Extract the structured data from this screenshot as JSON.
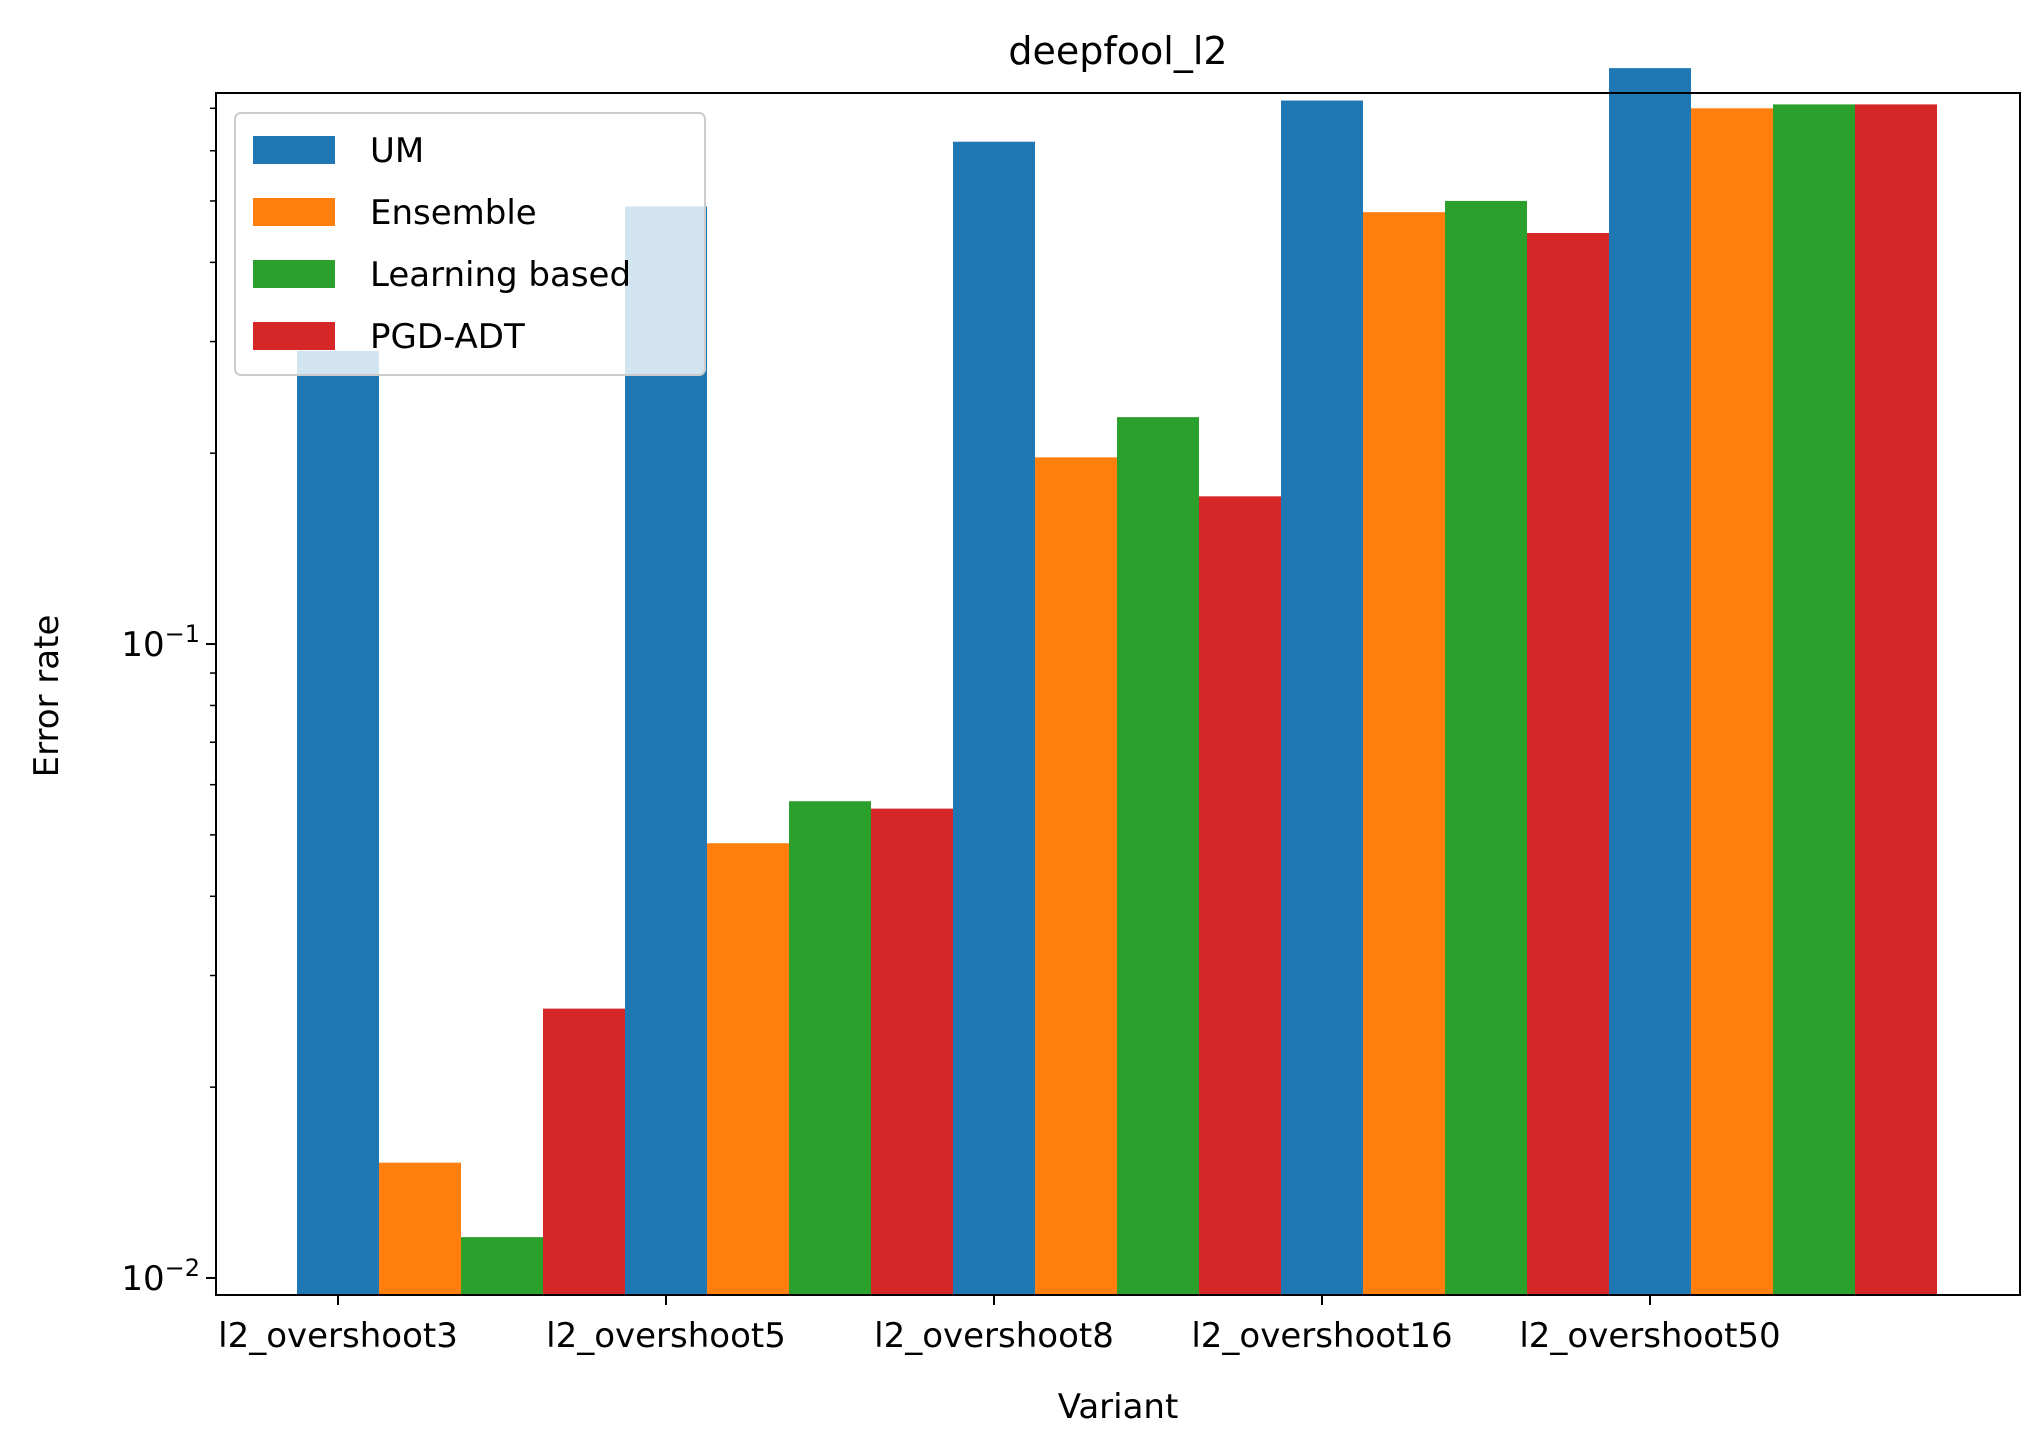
{
  "chart_data": {
    "type": "bar",
    "title": "deepfool_l2",
    "xlabel": "Variant",
    "ylabel": "Error rate",
    "yscale": "log",
    "ylim": [
      0.0094,
      0.74
    ],
    "categories": [
      "l2_overshoot3",
      "l2_overshoot5",
      "l2_overshoot8",
      "l2_overshoot16",
      "l2_overshoot50"
    ],
    "series": [
      {
        "name": "UM",
        "color": "#1f77b4",
        "values": [
          0.29,
          0.49,
          0.62,
          0.72,
          0.81
        ]
      },
      {
        "name": "Ensemble",
        "color": "#ff7f0e",
        "values": [
          0.0152,
          0.0485,
          0.197,
          0.48,
          0.7
        ]
      },
      {
        "name": "Learning based",
        "color": "#2ca02c",
        "values": [
          0.0116,
          0.0565,
          0.228,
          0.5,
          0.71
        ]
      },
      {
        "name": "PGD-ADT",
        "color": "#d62728",
        "values": [
          0.0266,
          0.055,
          0.171,
          0.445,
          0.71
        ]
      }
    ],
    "yticks": [
      {
        "value": 0.1,
        "base": "10",
        "exp": "−1"
      },
      {
        "value": 0.01,
        "base": "10",
        "exp": "−2"
      }
    ],
    "legend": {
      "position": "top-left"
    },
    "grid": false
  }
}
